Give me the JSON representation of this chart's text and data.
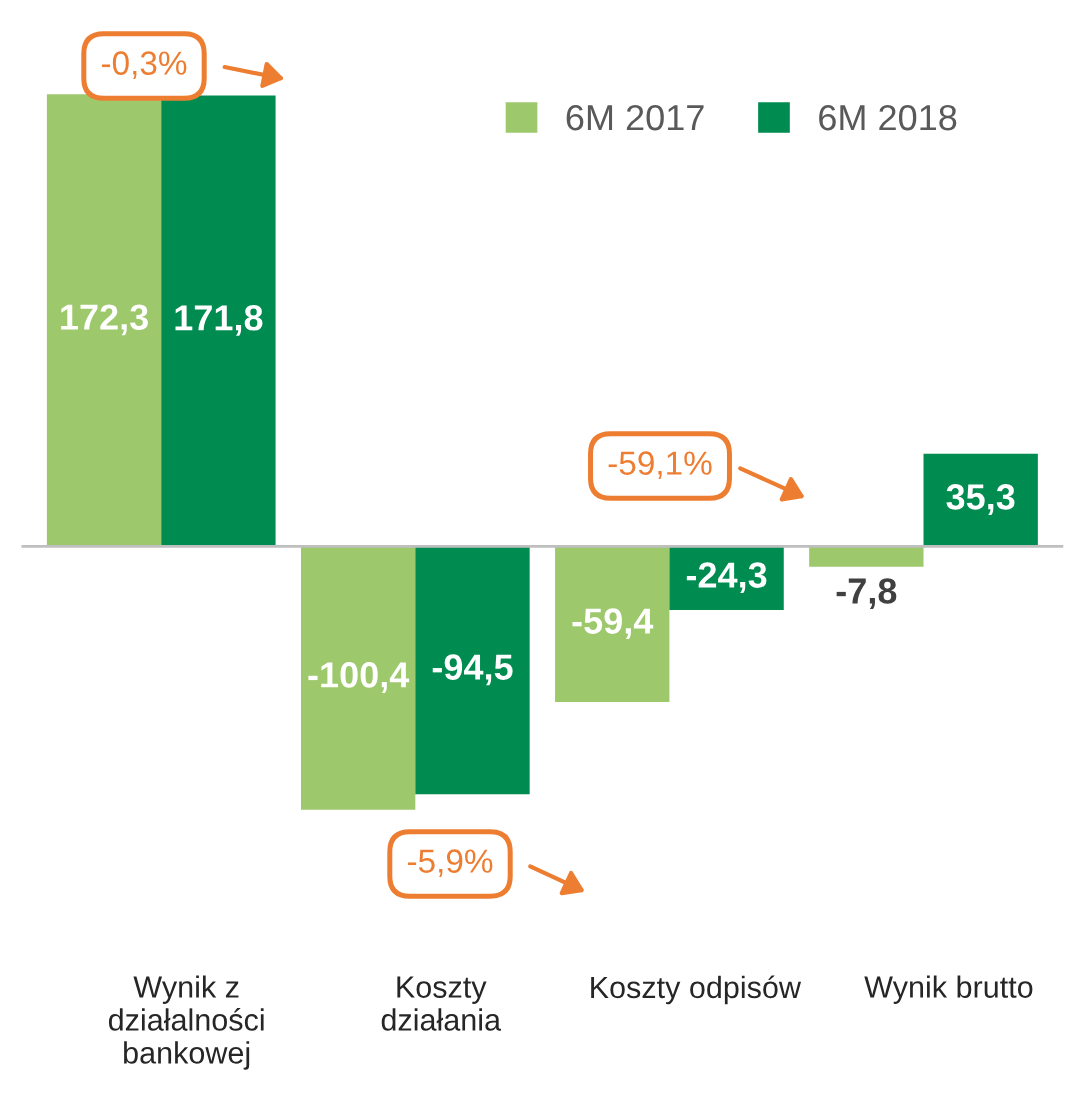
{
  "chart_data": {
    "type": "bar",
    "categories": [
      "Wynik z działalności bankowej",
      "Koszty działania",
      "Koszty odpisów",
      "Wynik brutto"
    ],
    "series": [
      {
        "name": "6M 2017",
        "color": "#9dc86c",
        "values": [
          172.3,
          -100.4,
          -59.4,
          -7.8
        ],
        "value_labels": [
          "172,3",
          "-100,4",
          "-59,4",
          "-7,8"
        ]
      },
      {
        "name": "6M 2018",
        "color": "#008c50",
        "values": [
          171.8,
          -94.5,
          -24.3,
          35.3
        ],
        "value_labels": [
          "171,8",
          "-94,5",
          "-24,3",
          "35,3"
        ]
      }
    ],
    "legend": "top right",
    "annotations": [
      "-0,3%",
      "-59,1%",
      "-5,9%"
    ]
  }
}
